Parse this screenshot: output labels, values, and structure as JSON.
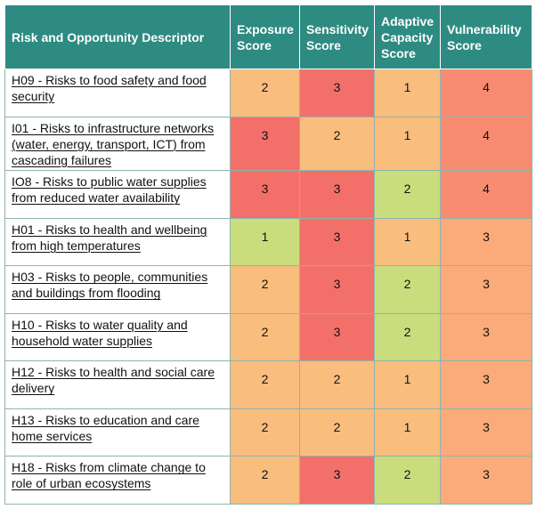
{
  "headers": [
    "Risk and Opportunity Descriptor",
    "Exposure Score",
    "Sensitivity Score",
    "Adaptive Capacity Score",
    "Vulnerability Score"
  ],
  "colors": {
    "header_bg": "#2e8b82",
    "score_1": "#c9dd7d",
    "score_2_3_4_by_column": "heatmap"
  },
  "rows": [
    {
      "descriptor": "H09 - Risks to food safety and food security",
      "exposure": "2",
      "sensitivity": "3",
      "adaptive": "1",
      "vulnerability": "4",
      "colors": [
        "#f9bd7e",
        "#f3706a",
        "#f9bd7e",
        "#f78c72"
      ]
    },
    {
      "descriptor": "I01 - Risks to infrastructure networks (water, energy, transport, ICT) from cascading failures",
      "exposure": "3",
      "sensitivity": "2",
      "adaptive": "1",
      "vulnerability": "4",
      "colors": [
        "#f3706a",
        "#f9bd7e",
        "#f9bd7e",
        "#f78c72"
      ]
    },
    {
      "descriptor": "IO8 - Risks to public water supplies from reduced water availability",
      "exposure": "3",
      "sensitivity": "3",
      "adaptive": "2",
      "vulnerability": "4",
      "colors": [
        "#f3706a",
        "#f3706a",
        "#c9dd7d",
        "#f78c72"
      ]
    },
    {
      "descriptor": "H01 - Risks to health and wellbeing from high temperatures",
      "exposure": "1",
      "sensitivity": "3",
      "adaptive": "1",
      "vulnerability": "3",
      "colors": [
        "#c9dd7d",
        "#f3706a",
        "#f9bd7e",
        "#fbab7a"
      ]
    },
    {
      "descriptor": "H03 - Risks to people, communities and buildings from flooding",
      "exposure": "2",
      "sensitivity": "3",
      "adaptive": "2",
      "vulnerability": "3",
      "colors": [
        "#f9bd7e",
        "#f3706a",
        "#c9dd7d",
        "#fbab7a"
      ]
    },
    {
      "descriptor": "H10 - Risks to water quality and household water supplies",
      "exposure": "2",
      "sensitivity": "3",
      "adaptive": "2",
      "vulnerability": "3",
      "colors": [
        "#f9bd7e",
        "#f3706a",
        "#c9dd7d",
        "#fbab7a"
      ]
    },
    {
      "descriptor": "H12 - Risks to health and social care delivery",
      "exposure": "2",
      "sensitivity": "2",
      "adaptive": "1",
      "vulnerability": "3",
      "colors": [
        "#f9bd7e",
        "#f9bd7e",
        "#f9bd7e",
        "#fbab7a"
      ]
    },
    {
      "descriptor": "H13 - Risks to education and care home services",
      "exposure": "2",
      "sensitivity": "2",
      "adaptive": "1",
      "vulnerability": "3",
      "colors": [
        "#f9bd7e",
        "#f9bd7e",
        "#f9bd7e",
        "#fbab7a"
      ]
    },
    {
      "descriptor": "H18 - Risks from climate change to role of urban ecosystems",
      "exposure": "2",
      "sensitivity": "3",
      "adaptive": "2",
      "vulnerability": "3",
      "colors": [
        "#f9bd7e",
        "#f3706a",
        "#c9dd7d",
        "#fbab7a"
      ]
    }
  ]
}
